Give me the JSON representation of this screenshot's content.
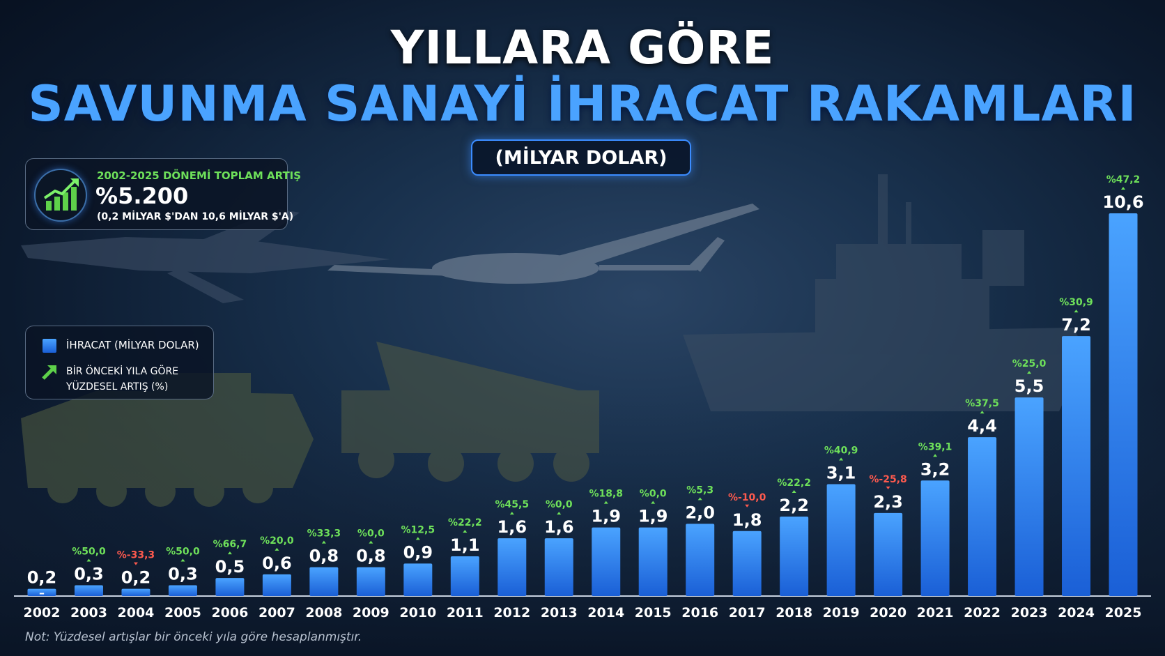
{
  "title_line1": "YILLARA GÖRE",
  "title_line2": "SAVUNMA SANAYİ İHRACAT RAKAMLARI",
  "unit": "(MİLYAR DOLAR)",
  "total_box": {
    "label": "2002-2025 DÖNEMİ TOPLAM ARTIŞ",
    "value": "%5.200",
    "sub": "(0,2 MİLYAR $'DAN 10,6 MİLYAR $'A)"
  },
  "legend": {
    "export_label": "İHRACAT (MİLYAR DOLAR)",
    "growth_label": "BİR ÖNCEKİ YILA GÖRE YÜZDESEL ARTIŞ (%)"
  },
  "note": "Not: Yüzdesel artışlar bir önceki yıla göre hesaplanmıştır.",
  "colors": {
    "bar_top": "#4aa3ff",
    "bar_bottom": "#1a5fd6",
    "positive": "#6ee05a",
    "negative": "#ff5a4e",
    "title_accent": "#4aa3ff"
  },
  "chart_data": {
    "type": "bar",
    "categories": [
      "2002",
      "2003",
      "2004",
      "2005",
      "2006",
      "2007",
      "2008",
      "2009",
      "2010",
      "2011",
      "2012",
      "2013",
      "2014",
      "2015",
      "2016",
      "2017",
      "2018",
      "2019",
      "2020",
      "2021",
      "2022",
      "2023",
      "2024",
      "2025"
    ],
    "values": [
      0.2,
      0.3,
      0.2,
      0.3,
      0.5,
      0.6,
      0.8,
      0.8,
      0.9,
      1.1,
      1.6,
      1.6,
      1.9,
      1.9,
      2.0,
      1.8,
      2.2,
      3.1,
      2.3,
      3.2,
      4.4,
      5.5,
      7.2,
      10.6
    ],
    "value_labels": [
      "0,2",
      "0,3",
      "0,2",
      "0,3",
      "0,5",
      "0,6",
      "0,8",
      "0,8",
      "0,9",
      "1,1",
      "1,6",
      "1,6",
      "1,9",
      "1,9",
      "2,0",
      "1,8",
      "2,2",
      "3,1",
      "2,3",
      "3,2",
      "4,4",
      "5,5",
      "7,2",
      "10,6"
    ],
    "growth_labels": [
      "",
      "%50,0",
      "%-33,3",
      "%50,0",
      "%66,7",
      "%20,0",
      "%33,3",
      "%0,0",
      "%12,5",
      "%22,2",
      "%45,5",
      "%0,0",
      "%18,8",
      "%0,0",
      "%5,3",
      "%-10,0",
      "%22,2",
      "%40,9",
      "%-25,8",
      "%39,1",
      "%37,5",
      "%25,0",
      "%30,9",
      "%47,2"
    ],
    "growth_values": [
      null,
      50.0,
      -33.3,
      50.0,
      66.7,
      20.0,
      33.3,
      0.0,
      12.5,
      22.2,
      45.5,
      0.0,
      18.8,
      0.0,
      5.3,
      -10.0,
      22.2,
      40.9,
      -25.8,
      39.1,
      37.5,
      25.0,
      30.9,
      47.2
    ],
    "first_bar_marker": "–",
    "ylim": [
      0,
      10.6
    ],
    "grid": false,
    "legend_position": "left"
  }
}
